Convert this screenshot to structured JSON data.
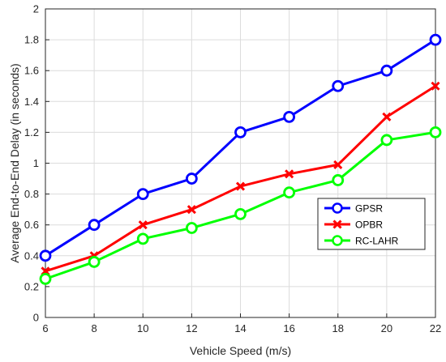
{
  "chart_data": {
    "type": "line",
    "title": "",
    "xlabel": "Vehicle Speed (m/s)",
    "ylabel": "Average End-to-End Delay (in seconds)",
    "xlim": [
      6,
      22
    ],
    "ylim": [
      0,
      2
    ],
    "xticks": [
      6,
      8,
      10,
      12,
      14,
      16,
      18,
      20,
      22
    ],
    "yticks": [
      0,
      0.2,
      0.4,
      0.6,
      0.8,
      1,
      1.2,
      1.4,
      1.6,
      1.8,
      2
    ],
    "grid": true,
    "legend_position": "right",
    "x": [
      6,
      8,
      10,
      12,
      14,
      16,
      18,
      20,
      22
    ],
    "series": [
      {
        "name": "GPSR",
        "color": "#0000ff",
        "marker": "circle",
        "values": [
          0.4,
          0.6,
          0.8,
          0.9,
          1.2,
          1.3,
          1.5,
          1.6,
          1.8
        ]
      },
      {
        "name": "OPBR",
        "color": "#ff0000",
        "marker": "x",
        "values": [
          0.3,
          0.4,
          0.6,
          0.7,
          0.85,
          0.93,
          0.99,
          1.3,
          1.5
        ]
      },
      {
        "name": "RC-LAHR",
        "color": "#00ff00",
        "marker": "circle",
        "values": [
          0.25,
          0.36,
          0.51,
          0.58,
          0.67,
          0.81,
          0.89,
          1.15,
          1.2
        ]
      }
    ]
  }
}
